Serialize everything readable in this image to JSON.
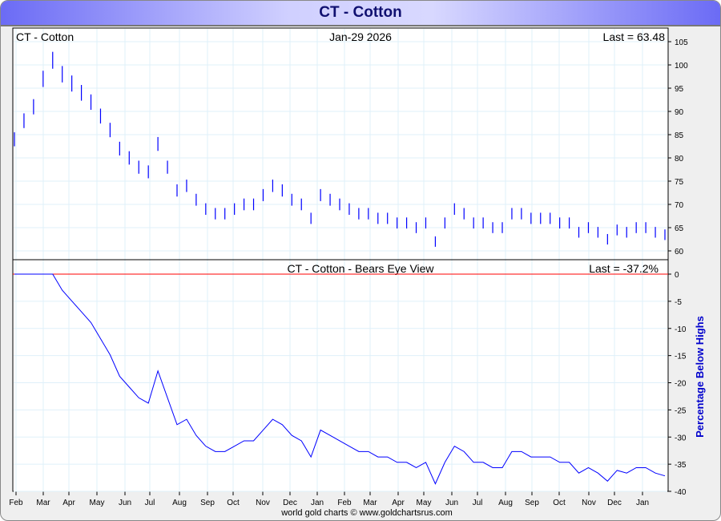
{
  "window_title": "CT  -  Cotton",
  "footer": "world gold charts © www.goldchartsrus.com",
  "colors": {
    "price": "#0000ff",
    "zero_line": "#ff0000",
    "axis_label": "#0000cc"
  },
  "chart_data": [
    {
      "type": "bar",
      "title": "CT  -  Cotton",
      "date": "Jan-29  2026",
      "last_label": "Last = 63.48",
      "ylim": [
        58,
        107
      ],
      "yticks": [
        60,
        65,
        70,
        75,
        80,
        85,
        90,
        95,
        100,
        105
      ],
      "x_tick_labels": [
        "Feb",
        "Mar",
        "Apr",
        "May",
        "Jun",
        "Jul",
        "Aug",
        "Sep",
        "Oct",
        "Nov",
        "Dec",
        "Jan",
        "Feb",
        "Mar",
        "Apr",
        "May",
        "Jun",
        "Jul",
        "Aug",
        "Sep",
        "Oct",
        "Nov",
        "Dec",
        "Jan"
      ],
      "values": [
        84,
        88,
        91,
        97,
        101,
        98,
        96,
        94,
        92,
        89,
        86,
        82,
        80,
        78,
        77,
        83,
        78,
        73,
        74,
        71,
        69,
        68,
        68,
        69,
        70,
        70,
        72,
        74,
        73,
        71,
        70,
        67,
        72,
        71,
        70,
        69,
        68,
        68,
        67,
        67,
        66,
        66,
        65,
        66,
        62,
        66,
        69,
        68,
        66,
        66,
        65,
        65,
        68,
        68,
        67,
        67,
        67,
        66,
        66,
        64,
        65,
        64,
        62.5,
        64.5,
        64,
        65,
        65,
        64,
        63.48
      ],
      "grid": true
    },
    {
      "type": "line",
      "title": "CT  -  Cotton - Bears Eye View",
      "last_label": "Last = -37.2%",
      "ylabel": "Percentage Below Highs",
      "ylim": [
        -40,
        0
      ],
      "yticks": [
        0,
        -5,
        -10,
        -15,
        -20,
        -25,
        -30,
        -35,
        -40
      ],
      "grid": true
    }
  ]
}
